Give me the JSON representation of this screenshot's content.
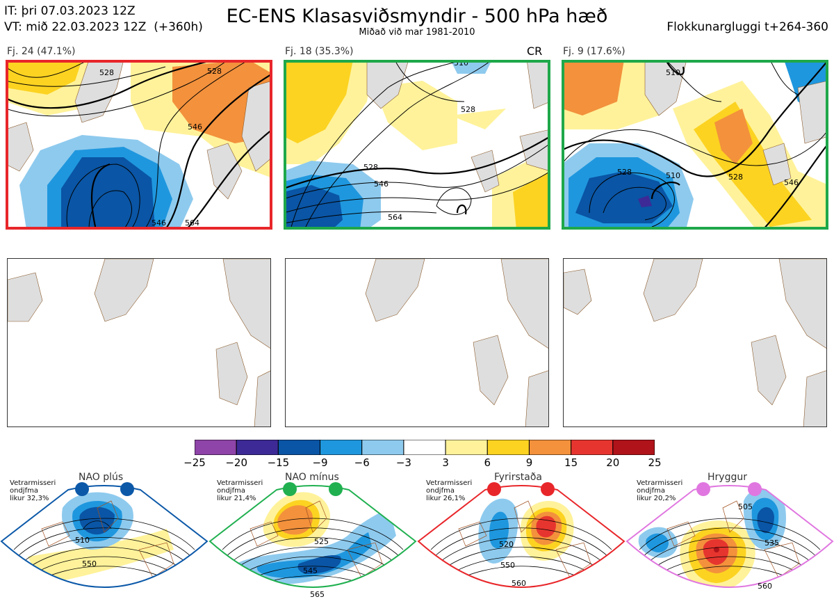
{
  "header": {
    "it_line": "IT: þri 07.03.2023 12Z",
    "vt_line": "VT: mið 22.03.2023 12Z  (+360h)",
    "title": "EC-ENS Klasasviðsmyndir - 500 hPa hæð",
    "subtitle": "Miðað við mar 1981-2010",
    "window": "Flokkunargluggi t+264-360"
  },
  "clusters": [
    {
      "label": "Fj. 24 (47.1%)",
      "border_color": "#e8262a",
      "tag": "",
      "contours": [
        "528",
        "546",
        "528",
        "546",
        "564"
      ]
    },
    {
      "label": "Fj. 18 (35.3%)",
      "border_color": "#1ea84a",
      "tag": "CR",
      "contours": [
        "510",
        "528",
        "546",
        "528",
        "564"
      ]
    },
    {
      "label": "Fj. 9 (17.6%)",
      "border_color": "#1ea84a",
      "tag": "",
      "contours": [
        "510",
        "528",
        "510",
        "528",
        "546"
      ]
    }
  ],
  "colorbar": {
    "labels": [
      "−25",
      "−20",
      "−15",
      "−9",
      "−6",
      "−3",
      "3",
      "6",
      "9",
      "15",
      "20",
      "25"
    ],
    "colors": [
      "#8e44a8",
      "#3d2a96",
      "#0a55a5",
      "#1f97de",
      "#8ecaee",
      "#ffffff",
      "#fff29a",
      "#fcd321",
      "#f3913c",
      "#e6352e",
      "#b0131a"
    ]
  },
  "regimes": [
    {
      "name": "NAO plús",
      "info": "Vetrarmisseri\nondjfma\nlikur 32,3%",
      "color": "#0b58a8",
      "contours": [
        "510",
        "550"
      ]
    },
    {
      "name": "NAO mínus",
      "info": "Vetrarmisseri\nondjfma\nlikur 21,4%",
      "color": "#20b050",
      "contours": [
        "525",
        "545",
        "565"
      ]
    },
    {
      "name": "Fyrirstaða",
      "info": "Vetrarmisseri\nondjfma\nlikur 26,1%",
      "color": "#e8262a",
      "contours": [
        "520",
        "550",
        "560"
      ]
    },
    {
      "name": "Hryggur",
      "info": "Vetrarmisseri\nondjfma\nlikur 20,2%",
      "color": "#e077e0",
      "contours": [
        "505",
        "535",
        "560"
      ]
    }
  ]
}
